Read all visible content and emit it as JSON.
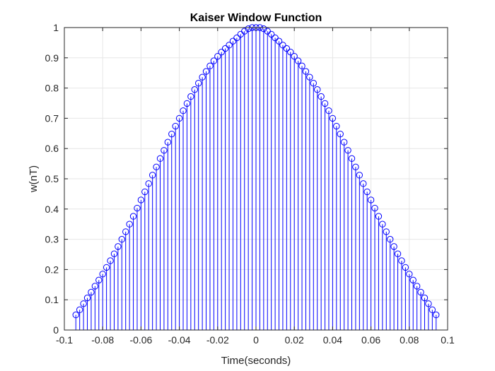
{
  "chart_data": {
    "type": "stem",
    "title": "Kaiser Window Function",
    "xlabel": "Time(seconds)",
    "ylabel": "w(nT)",
    "xlim": [
      -0.1,
      0.1
    ],
    "ylim": [
      0,
      1
    ],
    "xticks": [
      -0.1,
      -0.08,
      -0.06,
      -0.04,
      -0.02,
      0,
      0.02,
      0.04,
      0.06,
      0.08,
      0.1
    ],
    "xtick_labels": [
      "-0.1",
      "-0.08",
      "-0.06",
      "-0.04",
      "-0.02",
      "0",
      "0.02",
      "0.04",
      "0.06",
      "0.08",
      "0.1"
    ],
    "yticks": [
      0,
      0.1,
      0.2,
      0.3,
      0.4,
      0.5,
      0.6,
      0.7,
      0.8,
      0.9,
      1
    ],
    "ytick_labels": [
      "0",
      "0.1",
      "0.2",
      "0.3",
      "0.4",
      "0.5",
      "0.6",
      "0.7",
      "0.8",
      "0.9",
      "1"
    ],
    "grid": true,
    "marker": "circle",
    "color": "#0000ff",
    "x": [
      -0.094,
      -0.092,
      -0.09,
      -0.088,
      -0.086,
      -0.084,
      -0.082,
      -0.08,
      -0.078,
      -0.076,
      -0.074,
      -0.072,
      -0.07,
      -0.068,
      -0.066,
      -0.064,
      -0.062,
      -0.06,
      -0.058,
      -0.056,
      -0.054,
      -0.052,
      -0.05,
      -0.048,
      -0.046,
      -0.044,
      -0.042,
      -0.04,
      -0.038,
      -0.036,
      -0.034,
      -0.032,
      -0.03,
      -0.028,
      -0.026,
      -0.024,
      -0.022,
      -0.02,
      -0.018,
      -0.016,
      -0.014,
      -0.012,
      -0.01,
      -0.008,
      -0.006,
      -0.004,
      -0.002,
      0,
      0.002,
      0.004,
      0.006,
      0.008,
      0.01,
      0.012,
      0.014,
      0.016,
      0.018,
      0.02,
      0.022,
      0.024,
      0.026,
      0.028,
      0.03,
      0.032,
      0.034,
      0.036,
      0.038,
      0.04,
      0.042,
      0.044,
      0.046,
      0.048,
      0.05,
      0.052,
      0.054,
      0.056,
      0.058,
      0.06,
      0.062,
      0.064,
      0.066,
      0.068,
      0.07,
      0.072,
      0.074,
      0.076,
      0.078,
      0.08,
      0.082,
      0.084,
      0.086,
      0.088,
      0.09,
      0.092,
      0.094
    ],
    "y": [
      0.05,
      0.067,
      0.087,
      0.106,
      0.125,
      0.145,
      0.165,
      0.185,
      0.207,
      0.229,
      0.252,
      0.276,
      0.3,
      0.325,
      0.35,
      0.376,
      0.403,
      0.43,
      0.457,
      0.484,
      0.512,
      0.539,
      0.567,
      0.594,
      0.621,
      0.648,
      0.674,
      0.7,
      0.725,
      0.749,
      0.772,
      0.795,
      0.816,
      0.836,
      0.855,
      0.873,
      0.89,
      0.905,
      0.919,
      0.931,
      0.942,
      0.955,
      0.966,
      0.978,
      0.988,
      0.996,
      1.0,
      1.0,
      1.0,
      0.996,
      0.988,
      0.978,
      0.966,
      0.955,
      0.942,
      0.931,
      0.919,
      0.905,
      0.89,
      0.873,
      0.855,
      0.836,
      0.816,
      0.795,
      0.772,
      0.749,
      0.725,
      0.7,
      0.674,
      0.648,
      0.621,
      0.594,
      0.567,
      0.539,
      0.512,
      0.484,
      0.457,
      0.43,
      0.403,
      0.376,
      0.35,
      0.325,
      0.3,
      0.276,
      0.252,
      0.229,
      0.207,
      0.185,
      0.165,
      0.145,
      0.125,
      0.106,
      0.087,
      0.067,
      0.05
    ]
  }
}
